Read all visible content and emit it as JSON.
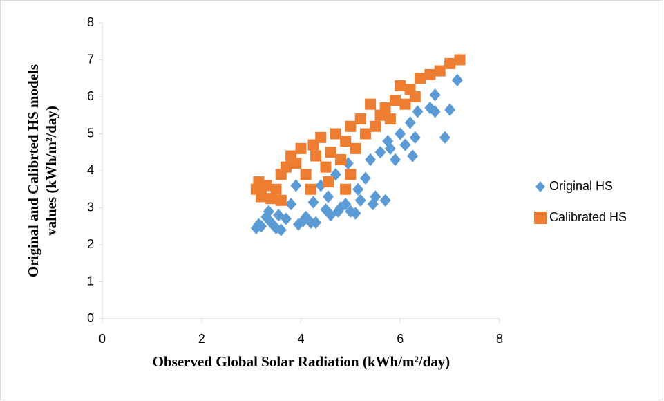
{
  "chart_data": {
    "type": "scatter",
    "xlabel": "Observed Global Solar Radiation (kWh/m²/day)",
    "ylabel": [
      "Original and Calibrted HS models",
      "values (kWh/m²/day)"
    ],
    "xlim": [
      0,
      8
    ],
    "xticks": [
      0,
      2,
      4,
      6,
      8
    ],
    "ylim": [
      0,
      8
    ],
    "yticks": [
      0,
      1,
      2,
      3,
      4,
      5,
      6,
      7,
      8
    ],
    "grid": false,
    "legend": "right",
    "series": [
      {
        "name": "Original HS",
        "color": "#5b9bd5",
        "marker": "diamond",
        "x": [
          3.1,
          3.15,
          3.2,
          3.3,
          3.35,
          3.4,
          3.5,
          3.55,
          3.6,
          3.7,
          3.8,
          3.9,
          3.95,
          4.05,
          4.1,
          4.2,
          4.25,
          4.3,
          4.4,
          4.5,
          4.55,
          4.6,
          4.7,
          4.75,
          4.8,
          4.9,
          4.95,
          5.0,
          5.1,
          5.15,
          5.2,
          5.3,
          5.4,
          5.45,
          5.5,
          5.6,
          5.7,
          5.75,
          5.8,
          5.9,
          6.0,
          6.1,
          6.2,
          6.25,
          6.3,
          6.35,
          6.6,
          6.7,
          6.7,
          6.9,
          7.0,
          7.15
        ],
        "values": [
          2.45,
          2.55,
          2.5,
          2.75,
          2.9,
          2.6,
          2.45,
          2.8,
          2.4,
          2.7,
          3.1,
          3.6,
          2.55,
          2.65,
          2.75,
          2.6,
          3.15,
          2.6,
          3.6,
          2.95,
          3.3,
          2.8,
          3.9,
          2.9,
          3.0,
          3.1,
          4.2,
          2.9,
          2.85,
          3.5,
          3.2,
          3.8,
          4.3,
          3.1,
          3.3,
          4.5,
          3.2,
          4.8,
          4.6,
          4.3,
          5.0,
          4.7,
          5.3,
          4.4,
          4.9,
          5.6,
          5.7,
          5.6,
          6.05,
          4.9,
          5.65,
          6.45
        ]
      },
      {
        "name": "Calibrated HS",
        "color": "#ed7d31",
        "marker": "square",
        "x": [
          3.1,
          3.15,
          3.2,
          3.3,
          3.4,
          3.5,
          3.6,
          3.6,
          3.7,
          3.8,
          3.9,
          4.0,
          4.1,
          4.2,
          4.25,
          4.3,
          4.4,
          4.5,
          4.6,
          4.7,
          4.8,
          4.9,
          5.0,
          5.0,
          5.1,
          5.2,
          5.3,
          5.4,
          5.5,
          5.6,
          5.7,
          5.8,
          5.9,
          6.0,
          6.1,
          6.2,
          6.3,
          6.4,
          6.6,
          6.8,
          7.0,
          7.2,
          4.55,
          4.9
        ],
        "values": [
          3.5,
          3.7,
          3.3,
          3.6,
          3.25,
          3.5,
          3.2,
          3.9,
          4.1,
          4.4,
          4.2,
          4.6,
          3.9,
          3.5,
          4.7,
          4.4,
          4.9,
          4.1,
          4.5,
          5.0,
          4.3,
          4.8,
          3.9,
          5.2,
          4.6,
          5.4,
          5.0,
          5.8,
          5.2,
          5.5,
          5.7,
          5.4,
          5.9,
          6.3,
          5.8,
          6.2,
          6.0,
          6.5,
          6.6,
          6.7,
          6.9,
          7.0,
          3.7,
          3.5
        ]
      }
    ]
  }
}
